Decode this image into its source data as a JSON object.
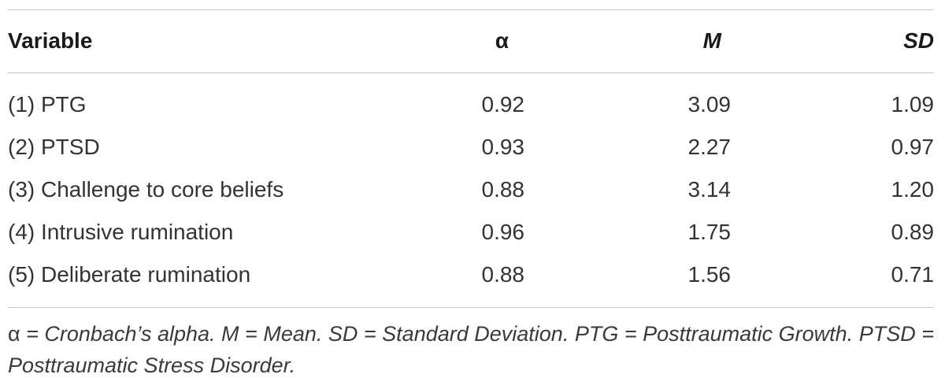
{
  "table": {
    "headers": {
      "variable": "Variable",
      "alpha": "α",
      "mean": "M",
      "sd": "SD"
    },
    "rows": [
      {
        "variable": "(1) PTG",
        "alpha": "0.92",
        "mean": "3.09",
        "sd": "1.09"
      },
      {
        "variable": "(2) PTSD",
        "alpha": "0.93",
        "mean": "2.27",
        "sd": "0.97"
      },
      {
        "variable": "(3) Challenge to core beliefs",
        "alpha": "0.88",
        "mean": "3.14",
        "sd": "1.20"
      },
      {
        "variable": "(4) Intrusive rumination",
        "alpha": "0.96",
        "mean": "1.75",
        "sd": "0.89"
      },
      {
        "variable": "(5) Deliberate rumination",
        "alpha": "0.88",
        "mean": "1.56",
        "sd": "0.71"
      }
    ],
    "footnote": {
      "alpha_symbol": "α",
      "text": " = Cronbach’s alpha. M = Mean. SD = Standard Deviation. PTG = Posttraumatic Growth. PTSD = Posttraumatic Stress Disorder."
    }
  },
  "colors": {
    "text": "#333333",
    "header_text": "#1a1a1a",
    "rule": "#c8c8c8"
  }
}
